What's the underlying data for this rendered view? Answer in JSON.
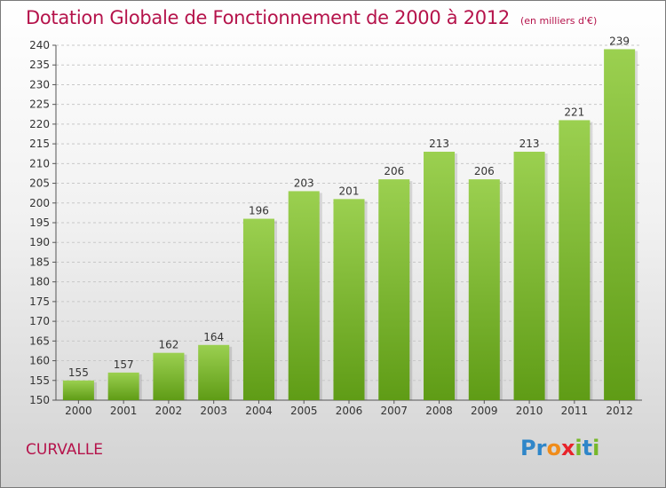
{
  "title": "Dotation Globale de Fonctionnement de 2000 à 2012",
  "subtitle": "(en milliers d'€)",
  "commune": "CURVALLE",
  "logo": {
    "letters": [
      "P",
      "r",
      "o",
      "x",
      "i",
      "t",
      "i"
    ],
    "colors": [
      "#2f86c9",
      "#2f86c9",
      "#f08c1a",
      "#e8232a",
      "#77b82a",
      "#2f86c9",
      "#77b82a"
    ]
  },
  "colors": {
    "accent": "#b5134b",
    "bar_top": "#9bd050",
    "bar_bottom": "#5f9c16",
    "grid": "#c8c8c8"
  },
  "chart_data": {
    "type": "bar",
    "categories": [
      "2000",
      "2001",
      "2002",
      "2003",
      "2004",
      "2005",
      "2006",
      "2007",
      "2008",
      "2009",
      "2010",
      "2011",
      "2012"
    ],
    "values": [
      155,
      157,
      162,
      164,
      196,
      203,
      201,
      206,
      213,
      206,
      213,
      221,
      239
    ],
    "ylim": [
      150,
      240
    ],
    "ytick_step": 5,
    "grid": true,
    "data_labels": true
  }
}
